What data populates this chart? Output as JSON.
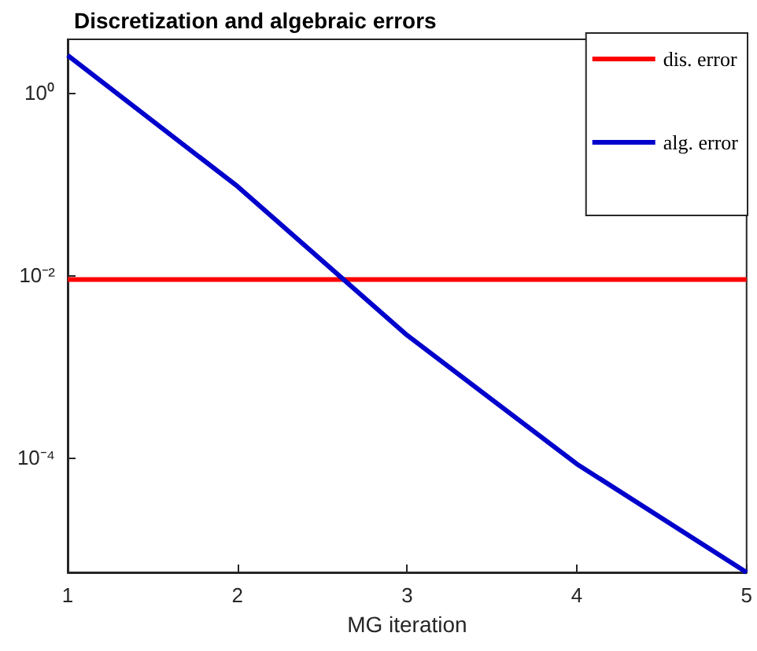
{
  "chart_data": {
    "type": "line",
    "title": "Discretization and algebraic errors",
    "xlabel": "MG iteration",
    "x": [
      1,
      2,
      3,
      4,
      5
    ],
    "series": [
      {
        "name": "dis. error",
        "color": "#ff0000",
        "values": [
          0.009,
          0.009,
          0.009,
          0.009,
          0.009
        ]
      },
      {
        "name": "alg. error",
        "color": "#0000cc",
        "values": [
          2.6,
          0.095,
          0.0022,
          8.5e-05,
          5.5e-06
        ]
      }
    ],
    "log": "y",
    "xlim": [
      1,
      5
    ],
    "xticks": [
      1,
      2,
      3,
      4,
      5
    ],
    "ylim": [
      5.5e-06,
      3.9
    ],
    "yticks": [
      {
        "value": 0.0001,
        "label": "10⁻⁴"
      },
      {
        "value": 0.01,
        "label": "10⁻²"
      },
      {
        "value": 1,
        "label": "10⁰"
      }
    ],
    "legend": "top right",
    "grid": false,
    "marker": "none",
    "line_style": "solid"
  }
}
